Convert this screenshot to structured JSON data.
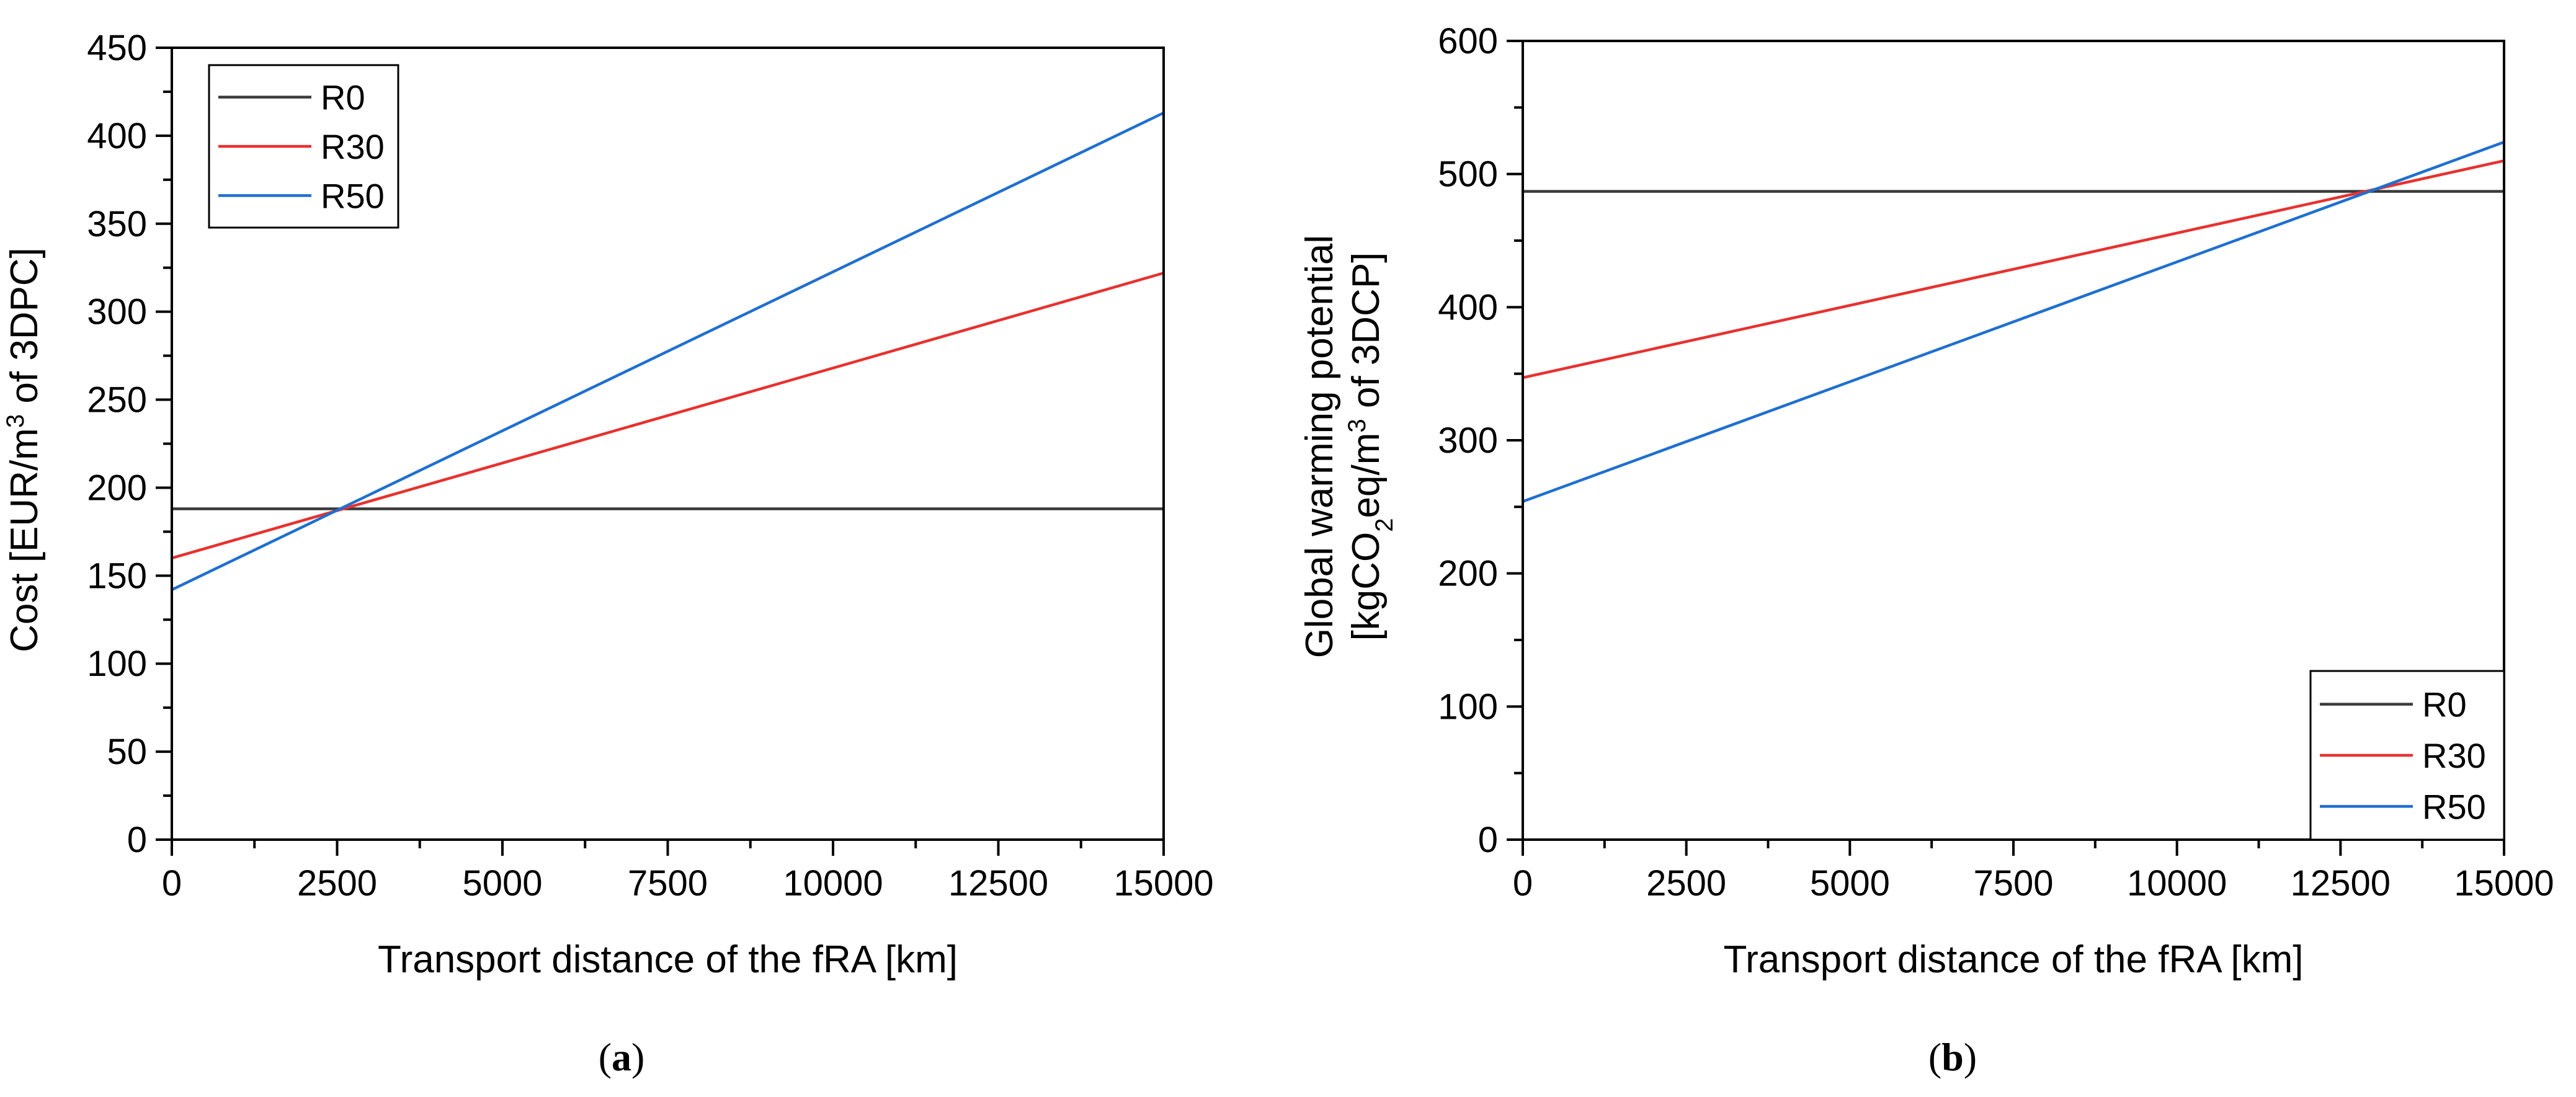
{
  "chart_data": [
    {
      "type": "line",
      "panel_label": "a",
      "xlabel": "Transport distance of the fRA [km]",
      "ylabel_parts": [
        "Cost [EUR/m",
        "3",
        " of 3DPC]"
      ],
      "xlim": [
        0,
        15000
      ],
      "ylim": [
        0,
        450
      ],
      "xticks": [
        0,
        2500,
        5000,
        7500,
        10000,
        12500,
        15000
      ],
      "yticks": [
        0,
        50,
        100,
        150,
        200,
        250,
        300,
        350,
        400,
        450
      ],
      "legend_position": "top-left",
      "series": [
        {
          "name": "R0",
          "color": "#3a3a3a",
          "x": [
            0,
            15000
          ],
          "y": [
            188,
            188
          ]
        },
        {
          "name": "R30",
          "color": "#e8312f",
          "x": [
            0,
            15000
          ],
          "y": [
            160,
            322
          ]
        },
        {
          "name": "R50",
          "color": "#1f6fd1",
          "x": [
            0,
            15000
          ],
          "y": [
            142,
            413
          ]
        }
      ]
    },
    {
      "type": "line",
      "panel_label": "b",
      "xlabel": "Transport distance of the fRA [km]",
      "ylabel_line1": "Global warming potential",
      "ylabel_parts": [
        "[kgCO",
        "2",
        "eq/m",
        "3",
        " of 3DCP]"
      ],
      "xlim": [
        0,
        15000
      ],
      "ylim": [
        0,
        600
      ],
      "xticks": [
        0,
        2500,
        5000,
        7500,
        10000,
        12500,
        15000
      ],
      "yticks": [
        0,
        100,
        200,
        300,
        400,
        500,
        600
      ],
      "legend_position": "bottom-right",
      "series": [
        {
          "name": "R0",
          "color": "#3a3a3a",
          "x": [
            0,
            15000
          ],
          "y": [
            487,
            487
          ]
        },
        {
          "name": "R30",
          "color": "#e8312f",
          "x": [
            0,
            15000
          ],
          "y": [
            347,
            510
          ]
        },
        {
          "name": "R50",
          "color": "#1f6fd1",
          "x": [
            0,
            15000
          ],
          "y": [
            254,
            524
          ]
        }
      ]
    }
  ]
}
